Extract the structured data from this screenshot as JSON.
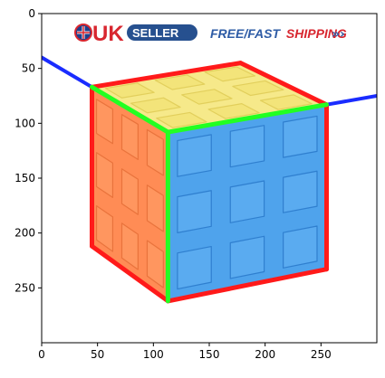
{
  "banner": {
    "uk_text": "UK",
    "seller_text": "SELLER",
    "shipping_text": "FREE/FAST",
    "shipping_text_red": "SHIPPING",
    "colors": {
      "uk_red": "#d8262f",
      "seller_blue": "#26508f",
      "shipping_blue": "#2e5ca6"
    }
  },
  "figure": {
    "image_extent": {
      "width": 300,
      "height": 300
    },
    "x_ticks": [
      "0",
      "50",
      "100",
      "150",
      "200",
      "250"
    ],
    "y_ticks": [
      "0",
      "50",
      "100",
      "150",
      "200",
      "250"
    ],
    "x_tick_values": [
      0,
      50,
      100,
      150,
      200,
      250
    ],
    "y_tick_values": [
      0,
      50,
      100,
      150,
      200,
      250
    ]
  },
  "overlay_lines": {
    "blue_left": [
      [
        0,
        40
      ],
      [
        45,
        67
      ]
    ],
    "blue_right": [
      [
        255,
        83
      ],
      [
        300,
        75
      ]
    ],
    "red_left_edge": [
      [
        45,
        67
      ],
      [
        45,
        212
      ]
    ],
    "red_bottom_left": [
      [
        45,
        212
      ],
      [
        113,
        262
      ]
    ],
    "red_bottom_right": [
      [
        113,
        262
      ],
      [
        255,
        233
      ]
    ],
    "red_right_edge": [
      [
        255,
        233
      ],
      [
        255,
        83
      ]
    ],
    "red_top_left": [
      [
        45,
        67
      ],
      [
        178,
        45
      ]
    ],
    "red_top_right": [
      [
        178,
        45
      ],
      [
        255,
        83
      ]
    ],
    "green_front_vertical": [
      [
        113,
        108
      ],
      [
        113,
        262
      ]
    ],
    "green_left_top": [
      [
        45,
        67
      ],
      [
        113,
        108
      ]
    ],
    "green_right_top": [
      [
        113,
        108
      ],
      [
        255,
        83
      ]
    ],
    "colors": {
      "red": "#ff1a1a",
      "green": "#22ff22",
      "blue": "#1a2cff"
    }
  },
  "cube_faces": {
    "top_color": "#f6e98a",
    "left_color": "#ff8c55",
    "front_color": "#4fa3ec"
  }
}
